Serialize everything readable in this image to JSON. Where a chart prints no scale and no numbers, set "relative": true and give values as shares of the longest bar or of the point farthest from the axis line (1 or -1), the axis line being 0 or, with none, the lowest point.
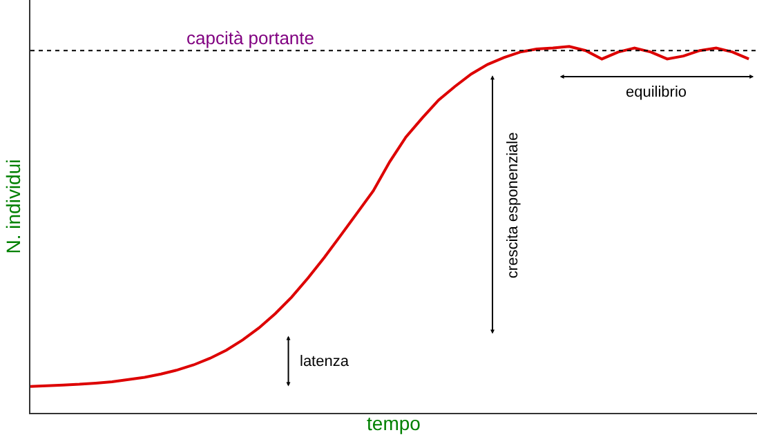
{
  "chart_data": {
    "type": "line",
    "relative": true,
    "xlabel": "tempo",
    "ylabel": "N. individui",
    "categories": [
      null,
      null,
      null,
      null,
      null,
      null,
      null,
      null,
      null,
      null,
      null,
      null,
      null,
      null,
      null,
      null,
      null,
      null,
      null,
      null,
      null,
      null,
      null,
      null,
      null,
      null,
      null,
      null,
      null,
      null,
      null,
      null,
      null,
      null,
      null,
      null,
      null,
      null,
      null,
      null,
      null,
      null,
      null,
      null,
      null
    ],
    "series": [
      {
        "color": "#dd0000",
        "values": [
          0.072,
          0.074,
          0.076,
          0.078,
          0.081,
          0.085,
          0.091,
          0.097,
          0.106,
          0.117,
          0.131,
          0.149,
          0.171,
          0.199,
          0.232,
          0.271,
          0.316,
          0.368,
          0.424,
          0.484,
          0.545,
          0.606,
          0.685,
          0.753,
          0.805,
          0.854,
          0.891,
          0.925,
          0.951,
          0.97,
          0.985,
          0.993,
          0.996,
          1.0,
          0.989,
          0.966,
          0.985,
          0.996,
          0.985,
          0.966,
          0.974,
          0.989,
          0.996,
          0.985,
          0.966
        ]
      }
    ],
    "ref_lines": [
      {
        "axis": "y",
        "value": 0.989,
        "label": "capcità portante",
        "color": "#000000",
        "line_style": "dotted"
      }
    ],
    "annotations": [
      "latenza",
      "crescita esponenziale",
      "equilibrio"
    ],
    "marker": "none",
    "line_style": "solid",
    "tick_labels": false
  }
}
